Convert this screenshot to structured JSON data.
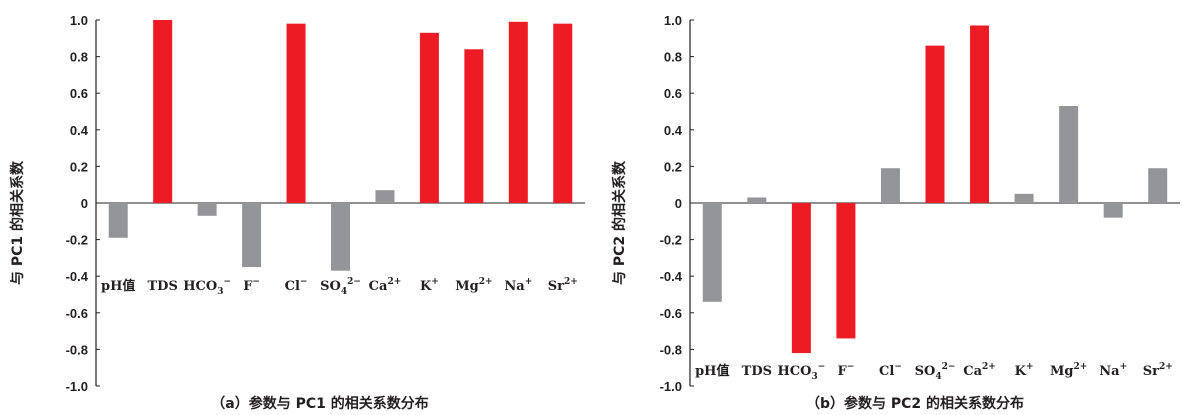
{
  "chart_data": [
    {
      "type": "bar",
      "title": "",
      "caption": "（a）参数与 PC1 的相关系数分布",
      "ylabel": "与 PC1 的相关系数",
      "xlabel": "",
      "ylim": [
        -1.0,
        1.0
      ],
      "yticks": [
        "1.0",
        "0.8",
        "0.6",
        "0.4",
        "0.2",
        "0",
        "-0.2",
        "-0.4",
        "-0.6",
        "-0.8",
        "-1.0"
      ],
      "categories": [
        "pH值",
        "TDS",
        "HCO3⁻",
        "F⁻",
        "Cl⁻",
        "SO4²⁻",
        "Ca²⁺",
        "K⁺",
        "Mg²⁺",
        "Na⁺",
        "Sr²⁺"
      ],
      "values": [
        -0.19,
        1.0,
        -0.07,
        -0.35,
        0.98,
        -0.37,
        0.07,
        0.93,
        0.84,
        0.99,
        0.98
      ],
      "highlight": [
        false,
        true,
        false,
        false,
        true,
        false,
        false,
        true,
        true,
        true,
        true
      ],
      "colors": {
        "highlight": "#ed1c24",
        "normal": "#939598"
      },
      "grid": false
    },
    {
      "type": "bar",
      "title": "",
      "caption": "（b）参数与 PC2 的相关系数分布",
      "ylabel": "与 PC2 的相关系数",
      "xlabel": "",
      "ylim": [
        -1.0,
        1.0
      ],
      "yticks": [
        "1.0",
        "0.8",
        "0.6",
        "0.4",
        "0.2",
        "0",
        "-0.2",
        "-0.4",
        "-0.6",
        "-0.8",
        "-1.0"
      ],
      "categories": [
        "pH值",
        "TDS",
        "HCO3⁻",
        "F⁻",
        "Cl⁻",
        "SO4²⁻",
        "Ca²⁺",
        "K⁺",
        "Mg²⁺",
        "Na⁺",
        "Sr²⁺"
      ],
      "values": [
        -0.54,
        0.03,
        -0.82,
        -0.74,
        0.19,
        0.86,
        0.97,
        0.05,
        0.53,
        -0.08,
        0.19
      ],
      "highlight": [
        false,
        false,
        true,
        true,
        false,
        true,
        true,
        false,
        false,
        false,
        false
      ],
      "colors": {
        "highlight": "#ed1c24",
        "normal": "#939598"
      },
      "grid": false
    }
  ]
}
